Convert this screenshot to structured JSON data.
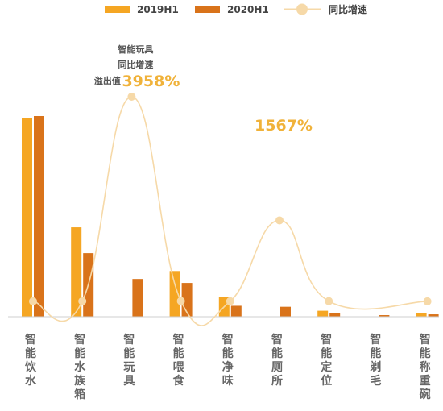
{
  "chart_data": {
    "type": "bar",
    "categories": [
      "智能饮水",
      "智能水族箱",
      "智能玩具",
      "智能喂食",
      "智能净味",
      "智能厕所",
      "智能定位",
      "智能剃毛",
      "智能称重碗"
    ],
    "series": [
      {
        "name": "2019H1",
        "kind": "bar",
        "color": "#f5a623",
        "values": [
          100,
          45,
          0,
          23,
          10,
          0,
          3,
          0,
          2
        ]
      },
      {
        "name": "2020H1",
        "kind": "bar",
        "color": "#d9731a",
        "values": [
          101,
          32,
          19,
          17,
          5.5,
          5,
          1.8,
          0.8,
          1.2
        ]
      },
      {
        "name": "同比增速",
        "kind": "line",
        "color": "#f6d9a8",
        "unit": "%",
        "values": [
          1,
          4,
          3958,
          7,
          4,
          1567,
          5,
          null,
          1
        ]
      }
    ],
    "legend": {
      "position": "top"
    },
    "grid": false,
    "annotations": [
      {
        "category": "智能玩具",
        "lines": [
          "智能玩具",
          "同比增速",
          "溢出值"
        ],
        "value": "3958%"
      },
      {
        "category": "智能厕所",
        "lines": [],
        "value": "1567%"
      }
    ]
  }
}
